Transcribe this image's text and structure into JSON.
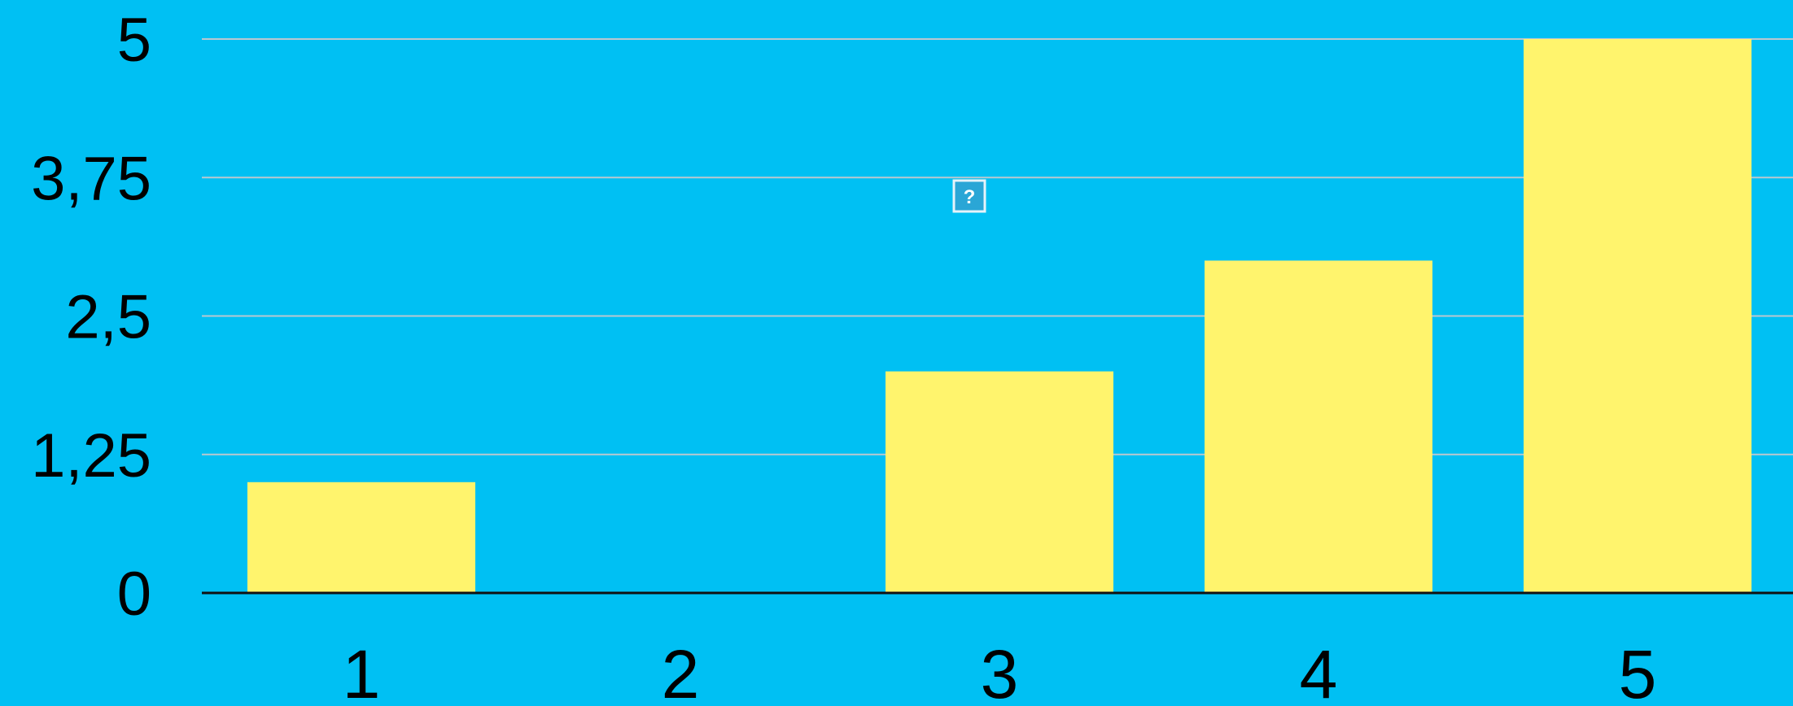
{
  "chart_data": {
    "type": "bar",
    "categories": [
      "1",
      "2",
      "3",
      "4",
      "5"
    ],
    "values": [
      1,
      0,
      2,
      3,
      5
    ],
    "title": "",
    "xlabel": "",
    "ylabel": "",
    "ylim": [
      0,
      5
    ],
    "y_ticks": [
      0,
      1.25,
      2.5,
      3.75,
      5
    ],
    "y_tick_labels": [
      "0",
      "1,25",
      "2,5",
      "3,75",
      "5"
    ],
    "grid": true,
    "legend": "none",
    "colors": {
      "background": "#00c0f3",
      "bar": "#fff46d",
      "grid": "#b9c8d0",
      "axis": "#111111"
    }
  },
  "icons": {
    "placeholder": "missing-image-icon",
    "placeholder_glyph": "?"
  }
}
